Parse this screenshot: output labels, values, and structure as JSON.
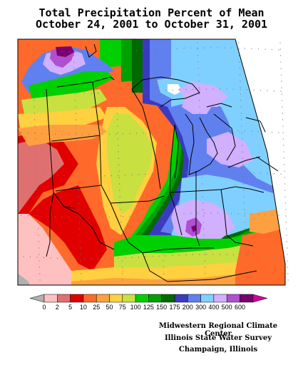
{
  "title": {
    "line1": "Total Precipitation Percent of Mean",
    "line2": "October 24, 2001 to October 31, 2001"
  },
  "legend": {
    "labels": [
      "0",
      "2",
      "5",
      "10",
      "25",
      "50",
      "75",
      "100",
      "125",
      "150",
      "175",
      "200",
      "300",
      "400",
      "500",
      "600"
    ],
    "colors": [
      "#ffc0c0",
      "#e07070",
      "#e00000",
      "#ff6a2a",
      "#ffa040",
      "#ffd040",
      "#c8e040",
      "#00d000",
      "#00a000",
      "#006a00",
      "#3a3ac0",
      "#6080f0",
      "#80d0ff",
      "#d0b0ff",
      "#b050d0",
      "#7a0070"
    ],
    "low_end_color": "#b0b0b0",
    "high_end_color": "#d000a0"
  },
  "credits": {
    "line1": "Midwestern Regional Climate Center",
    "line2": "Illinois State Water Survey",
    "line3": "Champaign, Illinois"
  }
}
